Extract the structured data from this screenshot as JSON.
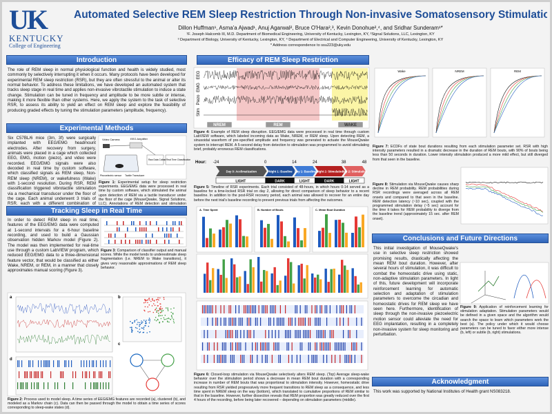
{
  "header": {
    "logo": {
      "mark": "UK",
      "name": "KENTUCKY",
      "college": "College of Engineering"
    },
    "title": "Automated Selective REM Sleep Restriction Through Non-invasive Somatosensory Stimulation",
    "authors": "Dillon Huffman¹, Asma'a Ajwad¹, Anuj Agarwal², Bruce O'Hara²,³, Kevin Donohue²,⁴, and Sridhar Sunderam¹*",
    "affiliations": [
      "¹F. Joseph Halcomb III, M.D. Department of Biomedical Engineering, University of Kentucky, Lexington, KY, ²Signal Solutions, LLC, Lexington, KY",
      "³ Department of Biology, University of Kentucky, Lexington, KY, ⁴ Department of Electrical and Computer Engineering, University of Kentucky, Lexington, KY",
      "* Address correspondence to ssu223@uky.edu"
    ]
  },
  "introduction": {
    "heading": "Introduction",
    "text": "The role of REM sleep in normal physiological function and health is widely studied, most commonly by selectively interrupting it when it occurs. Many protocols have been developed for experimental REM sleep restriction (RSR), but they are often stressful to the animal or alter its normal behavior. To address these limitations, we have developed an automated system that tracks sleep stage in real time and applies non-invasive vibrotactile stimulation to induce a state change. Stimulation can be tuned in frequency and amplitude to be more subtle or intense, making it more flexible than other systems. Here, we apply the system to the task of selective RSR, to assess its ability to yield an effect on REM sleep and explore the feasibility of producing graded effects by tuning the stimulation parameters (amplitude, frequency)."
  },
  "methods": {
    "heading": "Experimental Methods",
    "text": "Six C57BL/6 mice (3m, 3f) were surgically implanted with EEG/EMG headmount electrodes. After recovery from surgery, animals were placed in a cage which collected EEG, EMG, motion (piezo), and video were recorded. EEG/EMG signals were also decoded in real time by custom software, which classified signals as REM sleep, Non-REM sleep (NREM), or wakefulness (Wake) with 1-second resolution. During RSR, REM classification triggered vibrotactile stimulation via a mechanical transducer under the floor of the cage. Each animal underwent 3 trials of RSR, each with a different combination of stimulation parameters. Following experiments, raw data was segmented into 4-second epochs and manually scored to assess the effects of RSR trials on sleep architecture.",
    "figure_1": {
      "labels": [
        "Video Camera",
        "EEG Amplifier",
        "Raw Data Collection",
        "Real Time Classification",
        "Piezoelectric sensor",
        "Tactile Transducer"
      ],
      "caption_label": "Figure 1:",
      "caption": "Experimental setup for sleep restriction experiments. EEG/EMG data were processed in real time by custom software, which stimulated the animal upon detection of REM via a tactile transducer under the floor of the cage (MouseQwake, Signal Solutions, LLC). Annotations of REM detection and stimulation were stored in the data file."
    }
  },
  "tracking": {
    "heading": "Tracking Sleep in Real Time",
    "text": "In order to detect REM sleep in real time, features of the EEG/EMG data were computed at 1-second intervals for a 6-hour baseline recording, and used to build a Gaussian observation hidden Markov model (Figure 2). The model was then implemented for real-time use through a custom LabVIEW program, which reduced EEG/EMG data to a three-dimensional feature vector, that would be classified as either Wake, NREM, or REM, in a manner that closely approximates manual scoring (Figure 3).",
    "figure_3": {
      "caption_label": "Figure 3:",
      "caption": "Comparison of classifier output and manual scores. While the model tends to underestimate sleep fragmentation (i.e. NREM to Wake transitions), it gives very reasonable approximations of REM sleep behavior."
    },
    "figure_2": {
      "panels": [
        "a",
        "b",
        "c",
        "d"
      ],
      "caption_label": "Figure 2:",
      "caption": "Process used to model sleep. A time series of EEG/EMG features are recorded (a), clustered (b), and modeled as a Markov chain (c). Data can then be passed through the model to obtain a time series of scores corresponding to sleep-wake states (d)."
    }
  },
  "efficacy": {
    "heading": "Efficacy of REM Sleep Restriction",
    "figure_4": {
      "channels": [
        "EEG",
        "EMG",
        "Piezo",
        "Stim"
      ],
      "states": [
        "NREM",
        "REM",
        "WAKE"
      ],
      "caption_label": "Figure 4:",
      "caption": "Example of REM sleep disruption. EEG/EMG data were processed in real time through custom LabVIEW software, which labeled incoming data as Wake, NREM, or REM sleep. Upon detecting REM, a sinusoidal waveform of pre-specified amplitude and frequency was generated to actuate the MouseQwake system to interrupt REM. A 5-second delay from detection to stimulation was programmed to avoid stimulating brief, probably erroneous REM classifications."
    },
    "figure_5": {
      "hour_label": "Hour:",
      "hours": [
        -24,
        0,
        14,
        24,
        38,
        48
      ],
      "phases": [
        "Day 0: Acclimatization",
        "Night 1: Baseline",
        "Day 1: Baseline",
        "Night 2: Stimulation",
        "Day 2: Stimulation"
      ],
      "light_dark": [
        "LIGHT",
        "DARK",
        "LIGHT",
        "DARK",
        "LIGHT"
      ],
      "caption_label": "Figure 5:",
      "caption": "Timeline of RSR experiments. Each trial consisted of 48-hours, in which hours 0-14 served as a baseline for a time-locked RSR trial on day 2, allowing for direct comparison of sleep behavior to a recent baseline. In addition to the post-RSR recovery period, each animal was allowed to recover for an entire day before the next trial's baseline recording to prevent previous trials from affecting the outcomes."
    },
    "figure_6": {
      "panel_titles": [
        "A. Time Spent",
        "B. Number of Bouts",
        "C. Mean Bout Duration"
      ],
      "caption_label": "Figure 6:",
      "caption": "Closed-loop stimulation via MouseQwake selectively alters REM sleep. (Top) Average sleep-wake behavior over the stimulation period shows a decrease in mean REM bout duration with a corresponding increase in number of REM bouts that was proportional to stimulation intensity. However, homeostatic drive resulting from RSR yielded progressively more frequent transitions to REM sleep as a consequence, and less time spent in NREM sleep on the way (bottom), which translated to cumulative proportions of REM similar to that in the baseline. However, further dissection reveals that REM proportion was greatly reduced over the first 4 hours of the recording, before being later recovered – depending on stimulation parameters (middle)."
    },
    "figure_7": {
      "panel_titles": [
        "Wake",
        "NREM",
        "REM"
      ],
      "caption_label": "Figure 7:",
      "caption": "ECDFs of state bout durations resulting from each stimulation parameter set. RSR with high intensity parameters resulted in a dramatic decrease in the duration of REM bouts, with 90% of bouts being less than 50 seconds in duration. Lower intensity stimulation produced a more mild effect, but still diverged from that seen in the baseline."
    },
    "figure_8": {
      "caption_label": "Figure 8:",
      "caption": "Stimulation via MouseQwake causes sharp decline in REM probability. REM probabilities during RSR recordings were averaged across all REM onsets and compared to that seen in the baseline. REM detection latency (~10 sec), coupled with the programmed stimulation delay (~5 sec) account for the time it takes for REM probability to diverge from the baseline trend (approximately 15 sec. after REM onset)."
    }
  },
  "conclusions": {
    "heading": "Conclusions and Future Directions",
    "text": "This initial investigation of MouseQwake's use in selective sleep restriction showed promising results, drastically affecting the mean REM bout duration. However, after several hours of stimulation, it was difficult to combat the homeostatic drive using static, non-adaptive stimulation parameters. In light of this, future development will incorporate reinforcement learning for automatic selection and adaptation of stimulation parameters to overcome the circadian and homeostatic drives for REM sleep we have seen here. Furthermore, identification of sleep through the non-invasive piezoelectric motion sensor could alleviate the need for EEG implantation, resulting in a completely non-invasive system for sleep monitoring and perturbation.",
    "figure_9": {
      "caption_label": "Figure 9:",
      "caption": "Application of reinforcement learning for stimulation adaptation. Stimulation parameters would be defined in a given space and the algorithm would search the space to learn which parameters work the best (a). The policy under which it would choose parameters can be tuned to favor either more intense (b, left) or subtle (b, right) stimulations."
    }
  },
  "acknowledgment": {
    "heading": "Acknowledgment",
    "text": "This work was supported by National Institutes of Health grant NS083218."
  }
}
